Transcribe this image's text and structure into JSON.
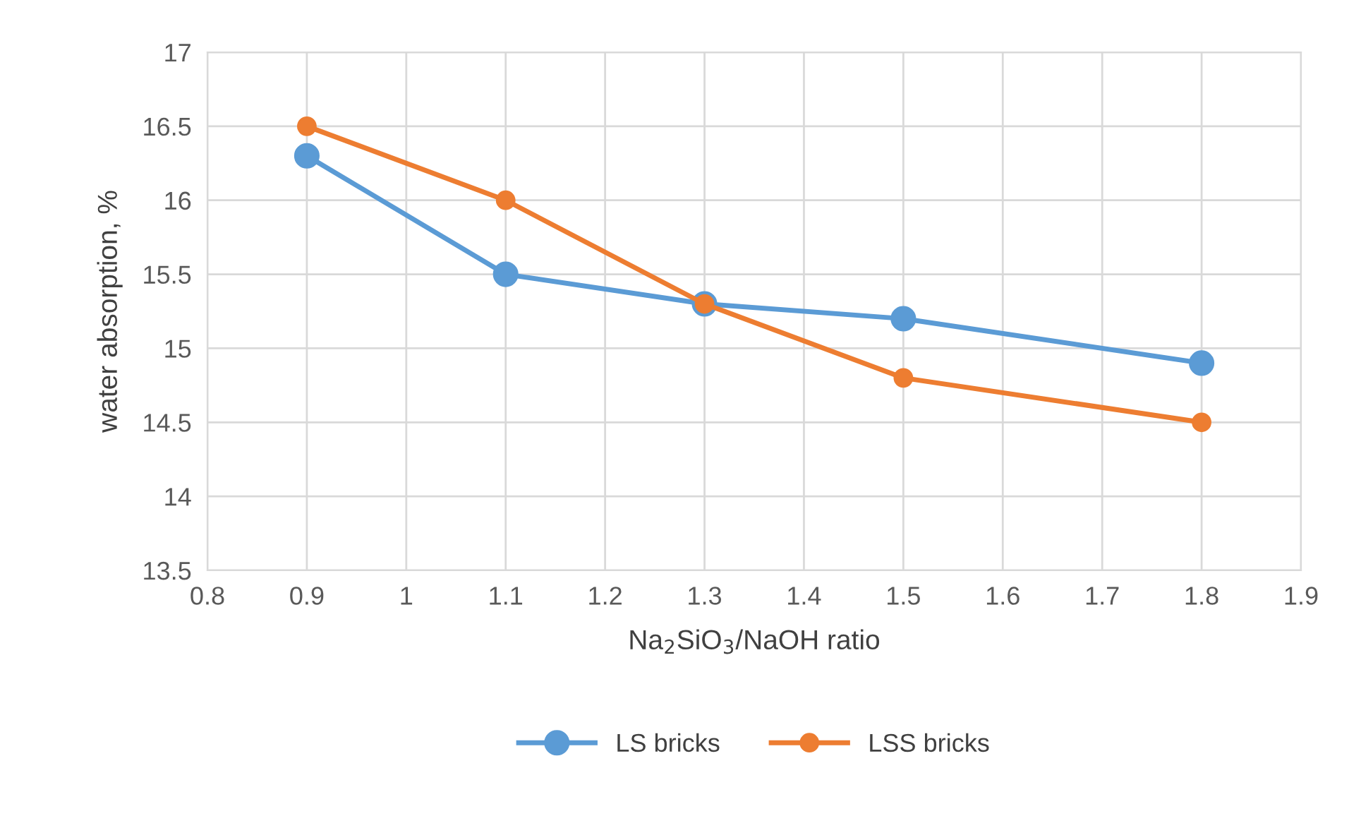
{
  "chart_data": {
    "type": "line",
    "xlabel": "Na$_{2}$SiO$_{3}$/NaOH ratio",
    "ylabel": "water absorption, %",
    "x": [
      0.9,
      1.1,
      1.3,
      1.5,
      1.8
    ],
    "series": [
      {
        "name": "LS bricks",
        "color": "#5b9bd5",
        "values": [
          16.3,
          15.5,
          15.3,
          15.2,
          14.9
        ]
      },
      {
        "name": "LSS bricks",
        "color": "#ed7d31",
        "values": [
          16.5,
          16.0,
          15.3,
          14.8,
          14.5
        ]
      }
    ],
    "xlim": [
      0.8,
      1.9
    ],
    "xticks": [
      0.8,
      0.9,
      1,
      1.1,
      1.2,
      1.3,
      1.4,
      1.5,
      1.6,
      1.7,
      1.8,
      1.9
    ],
    "ylim": [
      13.5,
      17
    ],
    "yticks": [
      13.5,
      14,
      14.5,
      15,
      15.5,
      16,
      16.5,
      17
    ],
    "grid": true,
    "legend": "bottom",
    "marker": "circle",
    "line_style": "solid"
  }
}
